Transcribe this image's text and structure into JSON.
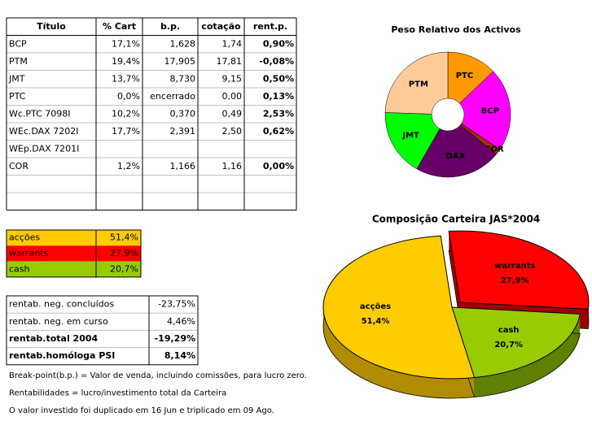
{
  "table": {
    "header": [
      "Título",
      "% Cart",
      "b.p.",
      "cotação",
      "rent.p."
    ],
    "rows": [
      {
        "cells": [
          "BCP",
          "17,1%",
          "1,628",
          "1,74",
          "0,90%"
        ],
        "rent_color": "#008000"
      },
      {
        "cells": [
          "PTM",
          "19,4%",
          "17,905",
          "17,81",
          "-0,08%"
        ],
        "rent_color": "#ff0000"
      },
      {
        "cells": [
          "JMT",
          "13,7%",
          "8,730",
          "9,15",
          "0,50%"
        ],
        "rent_color": "#008000"
      },
      {
        "cells": [
          "PTC",
          "0,0%",
          "encerrado",
          "0,00",
          "0,13%"
        ],
        "rent_color": "#008000"
      },
      {
        "cells": [
          "Wc.PTC 7098I",
          "10,2%",
          "0,370",
          "0,49",
          "2,53%"
        ],
        "rent_color": "#008000"
      },
      {
        "cells": [
          "WEc.DAX 7202I",
          "17,7%",
          "2,391",
          "2,50",
          "0,62%"
        ],
        "rent_color": "#008000"
      },
      {
        "cells": [
          "WEp.DAX 7201I",
          null,
          null,
          null,
          null
        ],
        "rent_color": null
      },
      {
        "cells": [
          "COR",
          "1,2%",
          "1,166",
          "1,16",
          "0,00%"
        ],
        "rent_color": "#ff0000"
      }
    ]
  },
  "allocation": [
    {
      "label": "acções",
      "value": "51,4%",
      "color": "#ffcc00"
    },
    {
      "label": "warrants",
      "value": "27,9%",
      "color": "#ff0000"
    },
    {
      "label": "cash",
      "value": "20,7%",
      "color": "#99cc00"
    }
  ],
  "returns": [
    {
      "label": "rentab. neg. concluídos",
      "value": "-23,75%",
      "bold": false
    },
    {
      "label": "rentab. neg. em curso",
      "value": "4,46%",
      "bold": false
    },
    {
      "label": "rentab.total 2004",
      "value": "-19,29%",
      "bold": true
    },
    {
      "label": "rentab.homóloga PSI",
      "value": "8,14%",
      "bold": true
    }
  ],
  "notes": [
    "Break-point(b.p.) = Valor de venda, incluindo comissões, para lucro zero.",
    "Rentabilidades = lucro/investimento total da Carteira",
    "O valor investido foi duplicado em 16 Jun e triplicado em 09 Ago."
  ],
  "chart_data": [
    {
      "type": "donut",
      "title": "Peso Relativo dos Activos",
      "categories": [
        "PTC",
        "BCP",
        "COR",
        "DAX",
        "JMT",
        "PTM"
      ],
      "values": [
        10.2,
        17.1,
        1.2,
        17.7,
        13.7,
        19.4
      ],
      "colors": [
        "#ff9900",
        "#ff00ff",
        "#993300",
        "#660066",
        "#00ff00",
        "#ffcc99"
      ]
    },
    {
      "type": "pie3d",
      "title": "Composição Carteira JAS*2004",
      "categories": [
        "warrants",
        "cash",
        "acções"
      ],
      "values": [
        27.9,
        20.7,
        51.4
      ],
      "value_labels": [
        "27,9%",
        "20,7%",
        "51,4%"
      ],
      "colors": [
        "#ff0000",
        "#99cc00",
        "#ffcc00"
      ],
      "exploded": [
        true,
        false,
        false
      ]
    }
  ]
}
